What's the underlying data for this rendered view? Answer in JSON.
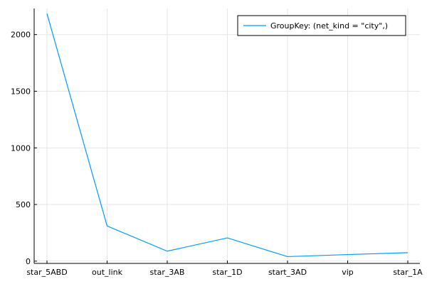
{
  "chart_data": {
    "type": "line",
    "title": "",
    "xlabel": "",
    "ylabel": "",
    "categories": [
      "star_5ABD",
      "out_link",
      "star_3AB",
      "star_1D",
      "start_3AD",
      "vip",
      "star_1A"
    ],
    "series": [
      {
        "name": "GroupKey: (net_kind = \"city\",)",
        "color": "#009AFA",
        "values": [
          2185,
          310,
          88,
          205,
          40,
          58,
          75
        ]
      }
    ],
    "ylim": [
      -20,
      2230
    ],
    "yticks": [
      0,
      500,
      1000,
      1500,
      2000
    ],
    "yticklabels": [
      "0",
      "500",
      "1000",
      "1500",
      "2000"
    ],
    "grid": true,
    "legend_position": "top-right"
  }
}
